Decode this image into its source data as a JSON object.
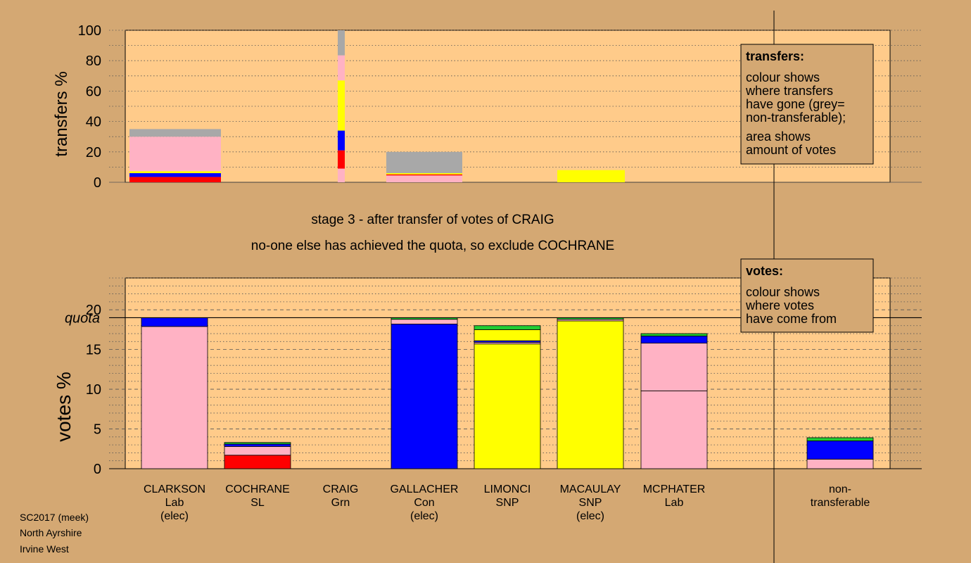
{
  "colors": {
    "background": "#D4A873",
    "panel": "#FFCB8A",
    "pink": "#FFB2C4",
    "red": "#FF0000",
    "blue": "#0000FF",
    "yellow": "#FFFF00",
    "green": "#22CC33",
    "grey": "#A8A8A8",
    "gridline": "#555555",
    "axis": "#000000"
  },
  "headings": {
    "stage": "stage 3 - after transfer of votes of CRAIG",
    "action": "no-one else has achieved the quota, so exclude COCHRANE"
  },
  "footer": [
    "SC2017 (meek)",
    "North Ayrshire",
    "Irvine West"
  ],
  "legends": {
    "transfers": {
      "title": "transfers:",
      "lines": [
        "colour shows",
        "where transfers",
        "have gone (grey=",
        "non-transferable);",
        "area shows",
        "amount of votes"
      ]
    },
    "votes": {
      "title": "votes:",
      "lines": [
        "colour shows",
        "where votes",
        "have come from"
      ]
    }
  },
  "chart_data": [
    {
      "type": "bar",
      "name": "transfers",
      "ylabel": "transfers %",
      "ylim": [
        0,
        100
      ],
      "yticks": [
        0,
        20,
        40,
        60,
        80,
        100
      ],
      "grid": "dotted every 10",
      "legend": "top-right",
      "note": "bar width is proportional to number of votes transferred",
      "categories": [
        "CLARKSON",
        "COCHRANE",
        "CRAIG",
        "GALLACHER",
        "LIMONCI",
        "MACAULAY",
        "MCPHATER"
      ],
      "bars": [
        {
          "category": "CLARKSON",
          "segments": [
            {
              "color": "red",
              "value": 3.5
            },
            {
              "color": "blue",
              "value": 2.5
            },
            {
              "color": "yellow",
              "value": 1.3
            },
            {
              "color": "pink",
              "value": 22.7
            },
            {
              "color": "grey",
              "value": 5
            }
          ]
        },
        {
          "category": "CRAIG",
          "segments": [
            {
              "color": "pink",
              "value": 9
            },
            {
              "color": "red",
              "value": 12
            },
            {
              "color": "blue",
              "value": 13
            },
            {
              "color": "yellow",
              "value": 33
            },
            {
              "color": "pink",
              "value": 16.5
            },
            {
              "color": "grey",
              "value": 16.5
            }
          ]
        },
        {
          "category": "GALLACHER",
          "segments": [
            {
              "color": "pink",
              "value": 4.5
            },
            {
              "color": "red",
              "value": 0.7
            },
            {
              "color": "yellow",
              "value": 0.8
            },
            {
              "color": "grey",
              "value": 14
            }
          ]
        },
        {
          "category": "MACAULAY",
          "segments": [
            {
              "color": "yellow",
              "value": 8
            }
          ]
        }
      ]
    },
    {
      "type": "bar",
      "name": "votes",
      "ylabel": "votes %",
      "ylim": [
        0,
        24
      ],
      "yticks": [
        0,
        5,
        10,
        15,
        20
      ],
      "quota": 19,
      "quota_label": "quota",
      "grid": "dashed every 5, dotted every 1",
      "legend": "top-right",
      "categories": [
        {
          "name": "CLARKSON",
          "party": "Lab",
          "status": "(elec)"
        },
        {
          "name": "COCHRANE",
          "party": "SL",
          "status": ""
        },
        {
          "name": "CRAIG",
          "party": "Grn",
          "status": ""
        },
        {
          "name": "GALLACHER",
          "party": "Con",
          "status": "(elec)"
        },
        {
          "name": "LIMONCI",
          "party": "SNP",
          "status": ""
        },
        {
          "name": "MACAULAY",
          "party": "SNP",
          "status": "(elec)"
        },
        {
          "name": "MCPHATER",
          "party": "Lab",
          "status": ""
        },
        {
          "name": "non-",
          "party": "transferable",
          "status": ""
        }
      ],
      "bars": [
        {
          "category": "CLARKSON",
          "segments": [
            {
              "color": "pink",
              "value": 17.9
            },
            {
              "color": "blue",
              "value": 1.1
            }
          ]
        },
        {
          "category": "COCHRANE",
          "segments": [
            {
              "color": "red",
              "value": 1.7
            },
            {
              "color": "pink",
              "value": 1.1
            },
            {
              "color": "blue",
              "value": 0.3
            },
            {
              "color": "green",
              "value": 0.2
            }
          ]
        },
        {
          "category": "CRAIG",
          "segments": []
        },
        {
          "category": "GALLACHER",
          "segments": [
            {
              "color": "blue",
              "value": 18.2
            },
            {
              "color": "pink",
              "value": 0.6
            },
            {
              "color": "green",
              "value": 0.2
            }
          ]
        },
        {
          "category": "LIMONCI",
          "segments": [
            {
              "color": "yellow",
              "value": 15.7
            },
            {
              "color": "pink",
              "value": 0.2
            },
            {
              "color": "blue",
              "value": 0.2
            },
            {
              "color": "yellow",
              "value": 1.4
            },
            {
              "color": "green",
              "value": 0.5
            }
          ]
        },
        {
          "category": "MACAULAY",
          "segments": [
            {
              "color": "yellow",
              "value": 18.6
            },
            {
              "color": "pink",
              "value": 0.2
            },
            {
              "color": "green",
              "value": 0.2
            }
          ]
        },
        {
          "category": "MCPHATER",
          "segments": [
            {
              "color": "pink",
              "value": 9.8
            },
            {
              "color": "pink",
              "value": 6.0
            },
            {
              "color": "blue",
              "value": 0.9
            },
            {
              "color": "green",
              "value": 0.3
            }
          ]
        },
        {
          "category": "non-transferable",
          "segments": [
            {
              "color": "pink",
              "value": 1.2
            },
            {
              "color": "blue",
              "value": 2.3
            },
            {
              "color": "green",
              "value": 0.4
            }
          ]
        }
      ]
    }
  ]
}
